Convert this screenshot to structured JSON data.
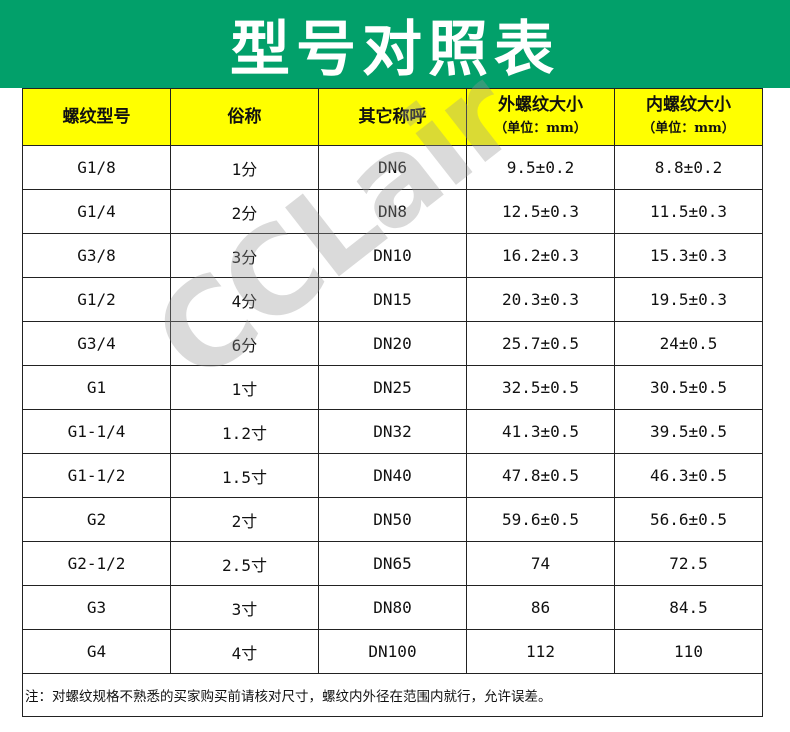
{
  "title": "型号对照表",
  "watermark": "CCLair",
  "colors": {
    "banner": "#02a06a",
    "header": "#ffff00"
  },
  "table": {
    "headers": [
      {
        "main": "螺纹型号",
        "sub": ""
      },
      {
        "main": "俗称",
        "sub": ""
      },
      {
        "main": "其它称呼",
        "sub": ""
      },
      {
        "main": "外螺纹大小",
        "sub": "（单位：mm）"
      },
      {
        "main": "内螺纹大小",
        "sub": "（单位：mm）"
      }
    ],
    "rows": [
      [
        "G1/8",
        "1分",
        "DN6",
        "9.5±0.2",
        "8.8±0.2"
      ],
      [
        "G1/4",
        "2分",
        "DN8",
        "12.5±0.3",
        "11.5±0.3"
      ],
      [
        "G3/8",
        "3分",
        "DN10",
        "16.2±0.3",
        "15.3±0.3"
      ],
      [
        "G1/2",
        "4分",
        "DN15",
        "20.3±0.3",
        "19.5±0.3"
      ],
      [
        "G3/4",
        "6分",
        "DN20",
        "25.7±0.5",
        "24±0.5"
      ],
      [
        "G1",
        "1寸",
        "DN25",
        "32.5±0.5",
        "30.5±0.5"
      ],
      [
        "G1-1/4",
        "1.2寸",
        "DN32",
        "41.3±0.5",
        "39.5±0.5"
      ],
      [
        "G1-1/2",
        "1.5寸",
        "DN40",
        "47.8±0.5",
        "46.3±0.5"
      ],
      [
        "G2",
        "2寸",
        "DN50",
        "59.6±0.5",
        "56.6±0.5"
      ],
      [
        "G2-1/2",
        "2.5寸",
        "DN65",
        "74",
        "72.5"
      ],
      [
        "G3",
        "3寸",
        "DN80",
        "86",
        "84.5"
      ],
      [
        "G4",
        "4寸",
        "DN100",
        "112",
        "110"
      ]
    ],
    "note": "注：对螺纹规格不熟悉的买家购买前请核对尺寸，螺纹内外径在范围内就行，允许误差。"
  }
}
